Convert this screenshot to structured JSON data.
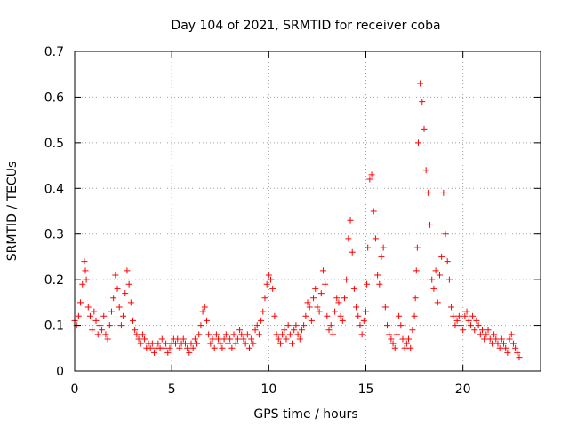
{
  "chart_data": {
    "type": "scatter",
    "title": "Day 104 of 2021, SRMTID for receiver coba",
    "xlabel": "GPS time / hours",
    "ylabel": "SRMTID / TECUs",
    "xlim": [
      0,
      24
    ],
    "ylim": [
      0,
      0.7
    ],
    "xticks": [
      0,
      5,
      10,
      15,
      20
    ],
    "xtick_labels": [
      "0",
      "5",
      "10",
      "15",
      "20"
    ],
    "yticks": [
      0,
      0.1,
      0.2,
      0.3,
      0.4,
      0.5,
      0.6,
      0.7
    ],
    "ytick_labels": [
      "0",
      "0.1",
      "0.2",
      "0.3",
      "0.4",
      "0.5",
      "0.6",
      "0.7"
    ],
    "grid": true,
    "marker": "+",
    "marker_color": "#ff0000",
    "series": [
      {
        "name": "SRMTID",
        "x": [
          0.0,
          0.1,
          0.2,
          0.3,
          0.4,
          0.5,
          0.55,
          0.6,
          0.7,
          0.8,
          0.9,
          1.0,
          1.1,
          1.2,
          1.3,
          1.4,
          1.5,
          1.6,
          1.7,
          1.8,
          1.9,
          2.0,
          2.1,
          2.2,
          2.3,
          2.4,
          2.5,
          2.6,
          2.7,
          2.8,
          2.9,
          3.0,
          3.1,
          3.2,
          3.3,
          3.4,
          3.5,
          3.6,
          3.7,
          3.8,
          3.9,
          4.0,
          4.1,
          4.2,
          4.3,
          4.4,
          4.5,
          4.6,
          4.7,
          4.8,
          4.9,
          5.0,
          5.1,
          5.2,
          5.3,
          5.4,
          5.5,
          5.6,
          5.7,
          5.8,
          5.9,
          6.0,
          6.1,
          6.2,
          6.3,
          6.4,
          6.5,
          6.6,
          6.7,
          6.8,
          6.9,
          7.0,
          7.1,
          7.2,
          7.3,
          7.4,
          7.5,
          7.6,
          7.7,
          7.8,
          7.9,
          8.0,
          8.1,
          8.2,
          8.3,
          8.4,
          8.5,
          8.6,
          8.7,
          8.8,
          8.9,
          9.0,
          9.1,
          9.2,
          9.3,
          9.4,
          9.5,
          9.6,
          9.7,
          9.8,
          9.9,
          10.0,
          10.1,
          10.2,
          10.3,
          10.4,
          10.5,
          10.6,
          10.7,
          10.8,
          10.9,
          11.0,
          11.1,
          11.2,
          11.3,
          11.4,
          11.5,
          11.6,
          11.7,
          11.8,
          11.9,
          12.0,
          12.1,
          12.2,
          12.3,
          12.4,
          12.5,
          12.6,
          12.7,
          12.8,
          12.9,
          13.0,
          13.1,
          13.2,
          13.3,
          13.4,
          13.5,
          13.6,
          13.7,
          13.8,
          13.9,
          14.0,
          14.1,
          14.2,
          14.3,
          14.4,
          14.5,
          14.6,
          14.7,
          14.8,
          14.9,
          15.0,
          15.05,
          15.1,
          15.2,
          15.3,
          15.4,
          15.5,
          15.6,
          15.7,
          15.8,
          15.9,
          16.0,
          16.1,
          16.2,
          16.3,
          16.4,
          16.5,
          16.6,
          16.7,
          16.8,
          16.9,
          17.0,
          17.1,
          17.2,
          17.3,
          17.4,
          17.5,
          17.55,
          17.6,
          17.65,
          17.7,
          17.8,
          17.9,
          18.0,
          18.1,
          18.2,
          18.3,
          18.4,
          18.5,
          18.6,
          18.7,
          18.8,
          18.9,
          19.0,
          19.1,
          19.2,
          19.3,
          19.4,
          19.5,
          19.6,
          19.7,
          19.8,
          19.9,
          20.0,
          20.1,
          20.2,
          20.3,
          20.4,
          20.5,
          20.6,
          20.7,
          20.8,
          20.9,
          21.0,
          21.1,
          21.2,
          21.3,
          21.4,
          21.5,
          21.6,
          21.7,
          21.8,
          21.9,
          22.0,
          22.1,
          22.2,
          22.3,
          22.4,
          22.5,
          22.6,
          22.7,
          22.8,
          22.9
        ],
        "y": [
          0.11,
          0.1,
          0.12,
          0.15,
          0.19,
          0.24,
          0.22,
          0.2,
          0.14,
          0.12,
          0.09,
          0.13,
          0.11,
          0.08,
          0.1,
          0.09,
          0.12,
          0.08,
          0.07,
          0.1,
          0.13,
          0.16,
          0.21,
          0.18,
          0.14,
          0.1,
          0.12,
          0.17,
          0.22,
          0.19,
          0.15,
          0.11,
          0.09,
          0.08,
          0.07,
          0.06,
          0.08,
          0.07,
          0.05,
          0.06,
          0.05,
          0.06,
          0.04,
          0.05,
          0.06,
          0.05,
          0.07,
          0.05,
          0.06,
          0.04,
          0.05,
          0.06,
          0.07,
          0.06,
          0.07,
          0.05,
          0.06,
          0.07,
          0.06,
          0.05,
          0.04,
          0.06,
          0.05,
          0.07,
          0.06,
          0.08,
          0.1,
          0.13,
          0.14,
          0.11,
          0.08,
          0.06,
          0.07,
          0.05,
          0.08,
          0.07,
          0.06,
          0.05,
          0.07,
          0.08,
          0.06,
          0.07,
          0.05,
          0.08,
          0.06,
          0.07,
          0.09,
          0.08,
          0.07,
          0.06,
          0.08,
          0.05,
          0.07,
          0.06,
          0.09,
          0.1,
          0.08,
          0.11,
          0.13,
          0.16,
          0.19,
          0.21,
          0.2,
          0.18,
          0.12,
          0.08,
          0.07,
          0.06,
          0.08,
          0.09,
          0.07,
          0.1,
          0.08,
          0.06,
          0.09,
          0.1,
          0.08,
          0.07,
          0.09,
          0.1,
          0.12,
          0.15,
          0.14,
          0.11,
          0.16,
          0.18,
          0.14,
          0.13,
          0.17,
          0.22,
          0.19,
          0.12,
          0.09,
          0.1,
          0.08,
          0.13,
          0.16,
          0.15,
          0.12,
          0.11,
          0.16,
          0.2,
          0.29,
          0.33,
          0.26,
          0.18,
          0.14,
          0.12,
          0.1,
          0.08,
          0.11,
          0.13,
          0.19,
          0.27,
          0.42,
          0.43,
          0.35,
          0.29,
          0.21,
          0.19,
          0.25,
          0.27,
          0.14,
          0.1,
          0.08,
          0.07,
          0.06,
          0.05,
          0.08,
          0.12,
          0.1,
          0.07,
          0.05,
          0.06,
          0.07,
          0.05,
          0.09,
          0.12,
          0.16,
          0.22,
          0.27,
          0.5,
          0.63,
          0.59,
          0.53,
          0.44,
          0.39,
          0.32,
          0.2,
          0.18,
          0.22,
          0.15,
          0.21,
          0.25,
          0.39,
          0.3,
          0.24,
          0.2,
          0.14,
          0.12,
          0.1,
          0.11,
          0.12,
          0.1,
          0.09,
          0.12,
          0.13,
          0.11,
          0.1,
          0.12,
          0.09,
          0.11,
          0.1,
          0.08,
          0.09,
          0.07,
          0.08,
          0.09,
          0.07,
          0.06,
          0.08,
          0.07,
          0.06,
          0.05,
          0.07,
          0.06,
          0.05,
          0.04,
          0.07,
          0.08,
          0.06,
          0.05,
          0.04,
          0.03
        ]
      }
    ]
  }
}
